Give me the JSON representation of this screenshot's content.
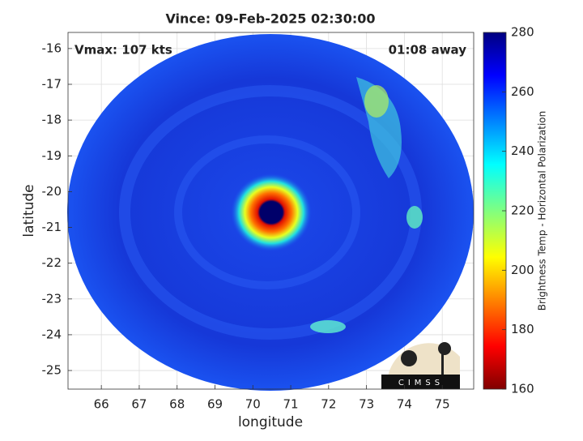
{
  "chart_data": {
    "type": "image",
    "title": "Vince: 09-Feb-2025 02:30:00",
    "annotations": [
      "Vmax: 107 kts",
      "01:08 away"
    ],
    "xlabel": "longitude",
    "ylabel": "latitude",
    "xlim": [
      65.12,
      75.83
    ],
    "xticks": [
      66,
      67,
      68,
      69,
      70,
      71,
      72,
      73,
      74,
      75
    ],
    "ylim": [
      -25.52,
      -15.55
    ],
    "yticks": [
      -16,
      -17,
      -18,
      -19,
      -20,
      -21,
      -22,
      -23,
      -24,
      -25
    ],
    "grid": true,
    "colorbar": {
      "label": "Brightness Temp - Horizontal Polarization",
      "clim": [
        160,
        280
      ],
      "ticks": [
        160,
        180,
        200,
        220,
        240,
        260,
        280
      ],
      "colormap": "jet"
    },
    "logo_text": "CIMSS"
  }
}
